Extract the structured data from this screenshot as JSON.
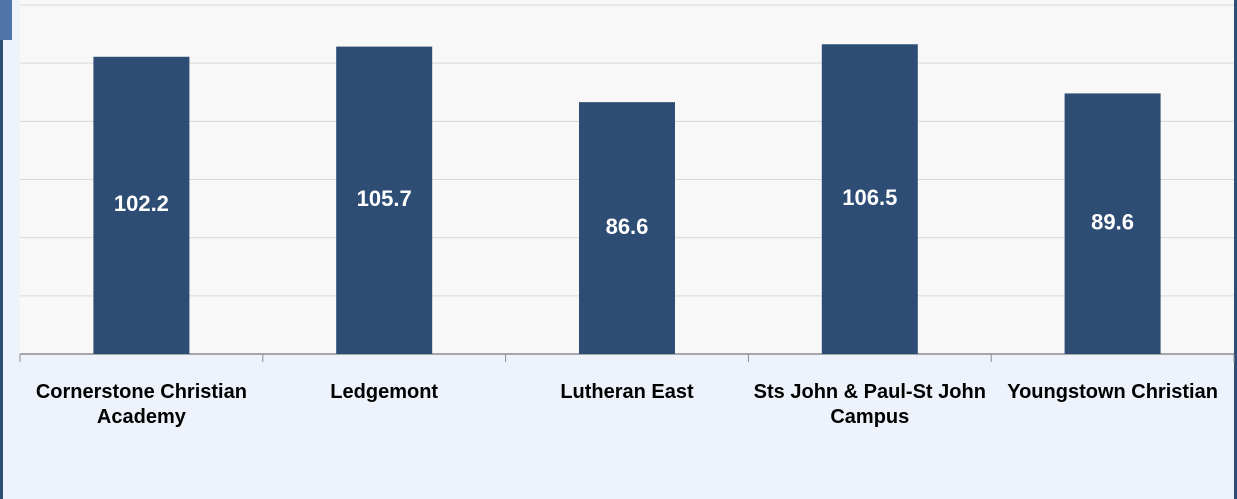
{
  "chart_data": {
    "type": "bar",
    "categories": [
      "Cornerstone Christian Academy",
      "Ledgemont",
      "Lutheran East",
      "Sts John & Paul-St John Campus",
      "Youngstown Christian"
    ],
    "values": [
      102.2,
      105.7,
      86.6,
      106.5,
      89.6
    ],
    "color": "#2e4d74",
    "ylim": [
      0,
      120
    ],
    "yticks": [
      0,
      20,
      40,
      60,
      80,
      100,
      120
    ],
    "grid": true
  }
}
